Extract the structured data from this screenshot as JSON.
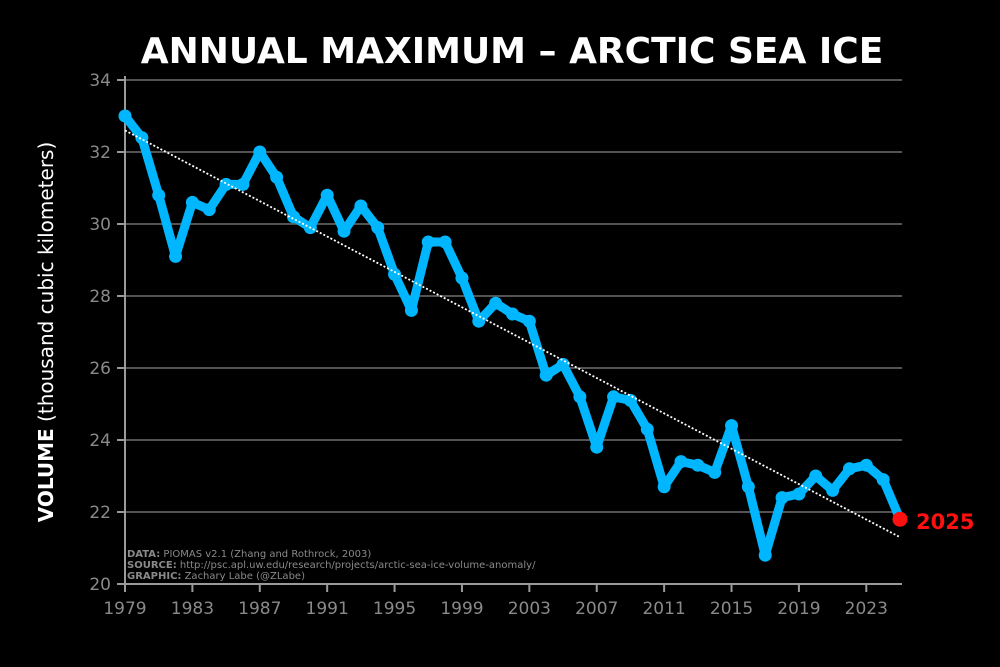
{
  "chart_data": {
    "type": "line",
    "title": "ANNUAL MAXIMUM – ARCTIC SEA ICE",
    "ylabel_bold": "VOLUME",
    "ylabel_rest": " (thousand cubic kilometers)",
    "xlim": [
      1979,
      2025
    ],
    "ylim": [
      20,
      34
    ],
    "yticks": [
      20,
      22,
      24,
      26,
      28,
      30,
      32,
      34
    ],
    "xticks": [
      1979,
      1983,
      1987,
      1991,
      1995,
      1999,
      2003,
      2007,
      2011,
      2015,
      2019,
      2023
    ],
    "grid": true,
    "series": [
      {
        "color": "#00b7ff",
        "x": [
          1979,
          1980,
          1981,
          1982,
          1983,
          1984,
          1985,
          1986,
          1987,
          1988,
          1989,
          1990,
          1991,
          1992,
          1993,
          1994,
          1995,
          1996,
          1997,
          1998,
          1999,
          2000,
          2001,
          2002,
          2003,
          2004,
          2005,
          2006,
          2007,
          2008,
          2009,
          2010,
          2011,
          2012,
          2013,
          2014,
          2015,
          2016,
          2017,
          2018,
          2019,
          2020,
          2021,
          2022,
          2023,
          2024,
          2025
        ],
        "y": [
          33.0,
          32.4,
          30.8,
          29.1,
          30.6,
          30.4,
          31.1,
          31.1,
          32.0,
          31.3,
          30.2,
          29.9,
          30.8,
          29.8,
          30.5,
          29.9,
          28.6,
          27.6,
          29.5,
          29.5,
          28.5,
          27.3,
          27.8,
          27.5,
          27.3,
          25.8,
          26.1,
          25.2,
          23.8,
          25.2,
          25.1,
          24.3,
          22.7,
          23.4,
          23.3,
          23.1,
          24.4,
          22.7,
          20.8,
          22.4,
          22.5,
          23.0,
          22.6,
          23.2,
          23.3,
          22.9,
          21.8
        ]
      }
    ],
    "trend": {
      "start": [
        1979,
        32.6
      ],
      "end": [
        2025,
        21.3
      ],
      "color": "#ffffff"
    },
    "highlight": {
      "label": "2025",
      "x": 2025,
      "y": 21.8,
      "color": "#ff1010"
    },
    "credits": [
      {
        "key": "DATA:",
        "text": " PIOMAS v2.1 (Zhang and Rothrock, 2003)"
      },
      {
        "key": "SOURCE:",
        "text": " http://psc.apl.uw.edu/research/projects/arctic-sea-ice-volume-anomaly/"
      },
      {
        "key": "GRAPHIC:",
        "text": " Zachary Labe (@ZLabe)"
      }
    ]
  }
}
